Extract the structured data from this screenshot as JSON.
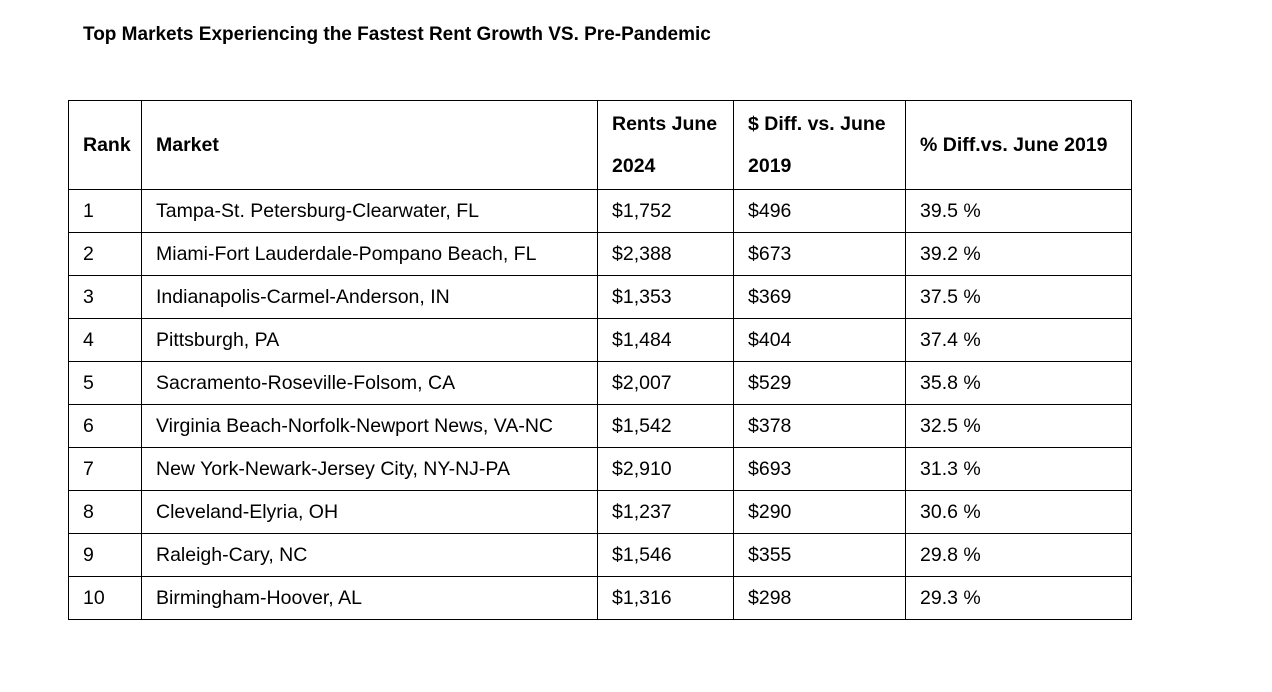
{
  "title": "Top Markets Experiencing the Fastest Rent Growth VS. Pre-Pandemic",
  "table": {
    "headers": {
      "rank": "Rank",
      "market": "Market",
      "rent": "Rents June 2024",
      "diff": "$ Diff. vs. June 2019",
      "pct": "% Diff.vs. June 2019"
    },
    "rows": [
      {
        "rank": "1",
        "market": "Tampa-St. Petersburg-Clearwater, FL",
        "rent": "$1,752",
        "diff": "$496",
        "pct": "39.5 %"
      },
      {
        "rank": "2",
        "market": "Miami-Fort Lauderdale-Pompano Beach, FL",
        "rent": "$2,388",
        "diff": "$673",
        "pct": "39.2 %"
      },
      {
        "rank": "3",
        "market": "Indianapolis-Carmel-Anderson, IN",
        "rent": "$1,353",
        "diff": "$369",
        "pct": "37.5 %"
      },
      {
        "rank": "4",
        "market": "Pittsburgh, PA",
        "rent": "$1,484",
        "diff": "$404",
        "pct": "37.4 %"
      },
      {
        "rank": "5",
        "market": "Sacramento-Roseville-Folsom, CA",
        "rent": "$2,007",
        "diff": "$529",
        "pct": "35.8 %"
      },
      {
        "rank": "6",
        "market": "Virginia Beach-Norfolk-Newport News, VA-NC",
        "rent": "$1,542",
        "diff": "$378",
        "pct": "32.5 %"
      },
      {
        "rank": "7",
        "market": "New York-Newark-Jersey City, NY-NJ-PA",
        "rent": "$2,910",
        "diff": "$693",
        "pct": "31.3 %"
      },
      {
        "rank": "8",
        "market": "Cleveland-Elyria, OH",
        "rent": "$1,237",
        "diff": "$290",
        "pct": "30.6 %"
      },
      {
        "rank": "9",
        "market": "Raleigh-Cary, NC",
        "rent": "$1,546",
        "diff": "$355",
        "pct": "29.8 %"
      },
      {
        "rank": "10",
        "market": "Birmingham-Hoover, AL",
        "rent": "$1,316",
        "diff": "$298",
        "pct": "29.3 %"
      }
    ]
  }
}
